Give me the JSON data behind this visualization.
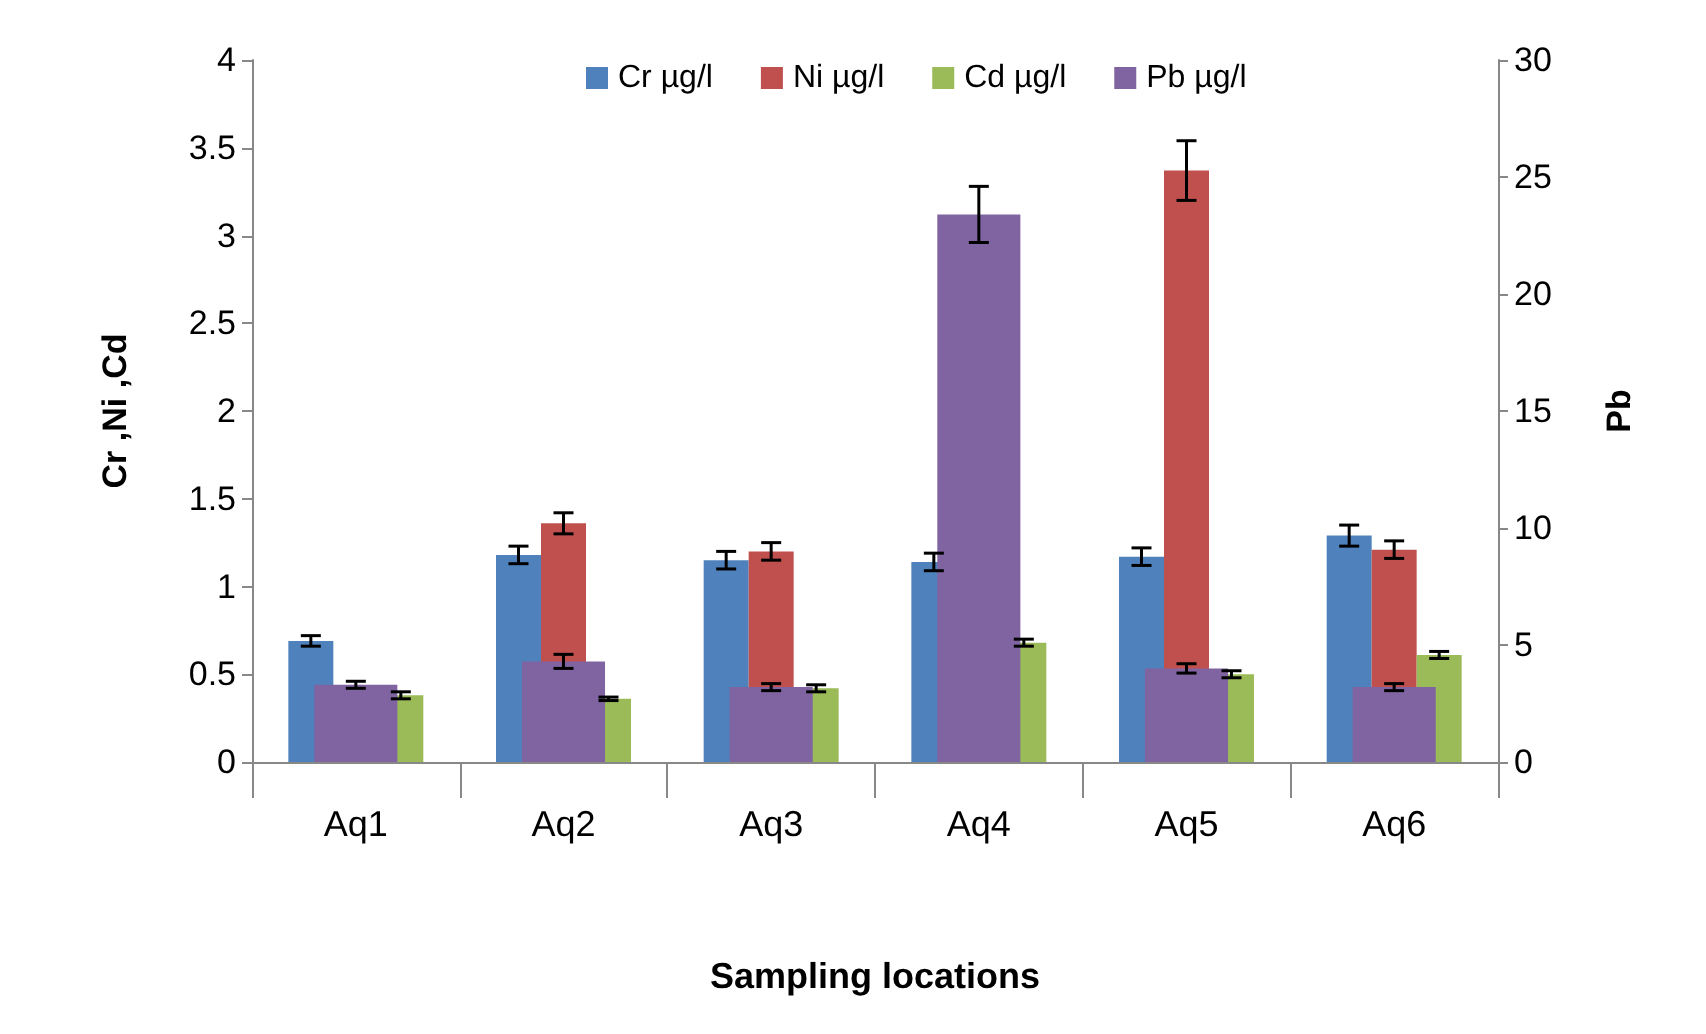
{
  "chart_data": {
    "type": "bar",
    "xlabel": "Sampling locations",
    "ylabel": "Cr ,Ni ,Cd",
    "y2label": "Pb",
    "categories": [
      "Aq1",
      "Aq2",
      "Aq3",
      "Aq4",
      "Aq5",
      "Aq6"
    ],
    "series": [
      {
        "name": "Cr µg/l",
        "color": "#4f81bd",
        "values": [
          0.69,
          1.18,
          1.15,
          1.14,
          1.17,
          1.29
        ],
        "errors": [
          0.03,
          0.05,
          0.05,
          0.05,
          0.05,
          0.06
        ]
      },
      {
        "name": "Ni µg/l",
        "color": "#c0504d",
        "values": [
          null,
          1.36,
          1.2,
          null,
          3.37,
          1.21
        ],
        "errors": [
          null,
          0.06,
          0.05,
          null,
          0.17,
          0.05
        ]
      },
      {
        "name": "Cd µg/l",
        "color": "#9bbb59",
        "values": [
          0.38,
          0.36,
          0.42,
          0.68,
          0.5,
          0.61
        ],
        "errors": [
          0.02,
          0.01,
          0.02,
          0.02,
          0.02,
          0.02
        ]
      },
      {
        "name": "Pb µg/l",
        "color": "#8064a2",
        "axis": "y2",
        "values": [
          3.3,
          4.3,
          3.2,
          23.4,
          4.0,
          3.2
        ],
        "errors": [
          0.15,
          0.3,
          0.15,
          1.2,
          0.2,
          0.15
        ]
      }
    ],
    "ylim": [
      0,
      4
    ],
    "yticks": [
      0,
      0.5,
      1,
      1.5,
      2,
      2.5,
      3,
      3.5,
      4
    ],
    "y2lim": [
      0,
      30
    ],
    "y2ticks": [
      0,
      5,
      10,
      15,
      20,
      25,
      30
    ],
    "grid": false,
    "legend": "top"
  }
}
